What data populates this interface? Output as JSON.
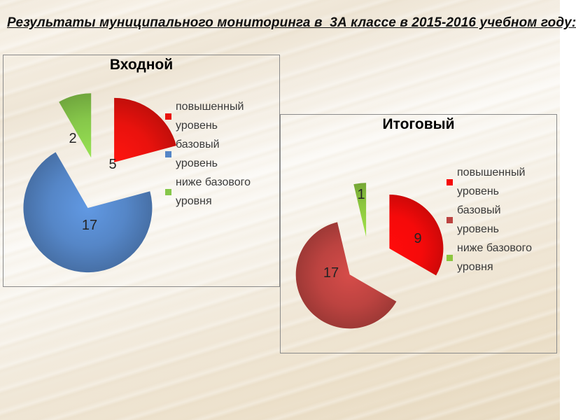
{
  "slide_title": "Результаты муниципального мониторинга в  3А классе в 2015-2016 учебном году:",
  "chart_data": [
    {
      "type": "pie",
      "title": "Входной",
      "labels": [
        "повышенный уровень",
        "базовый уровень",
        "ниже базового уровня"
      ],
      "values": [
        5,
        17,
        2
      ],
      "data_labels": [
        "5",
        "17",
        "2"
      ],
      "colors": [
        "#e9120d",
        "#5586c7",
        "#86c74a"
      ],
      "legend_position": "right",
      "start_angle_deg": 0,
      "direction": "clockwise",
      "exploded": true
    },
    {
      "type": "pie",
      "title": "Итоговый",
      "labels": [
        "повышенный уровень",
        "базовый уровень",
        "ниже базового уровня"
      ],
      "values": [
        9,
        17,
        1
      ],
      "data_labels": [
        "9",
        "17",
        "1"
      ],
      "colors": [
        "#f50a0a",
        "#bc4340",
        "#8cc63f"
      ],
      "legend_position": "right",
      "start_angle_deg": 0,
      "direction": "clockwise",
      "exploded": true
    }
  ]
}
